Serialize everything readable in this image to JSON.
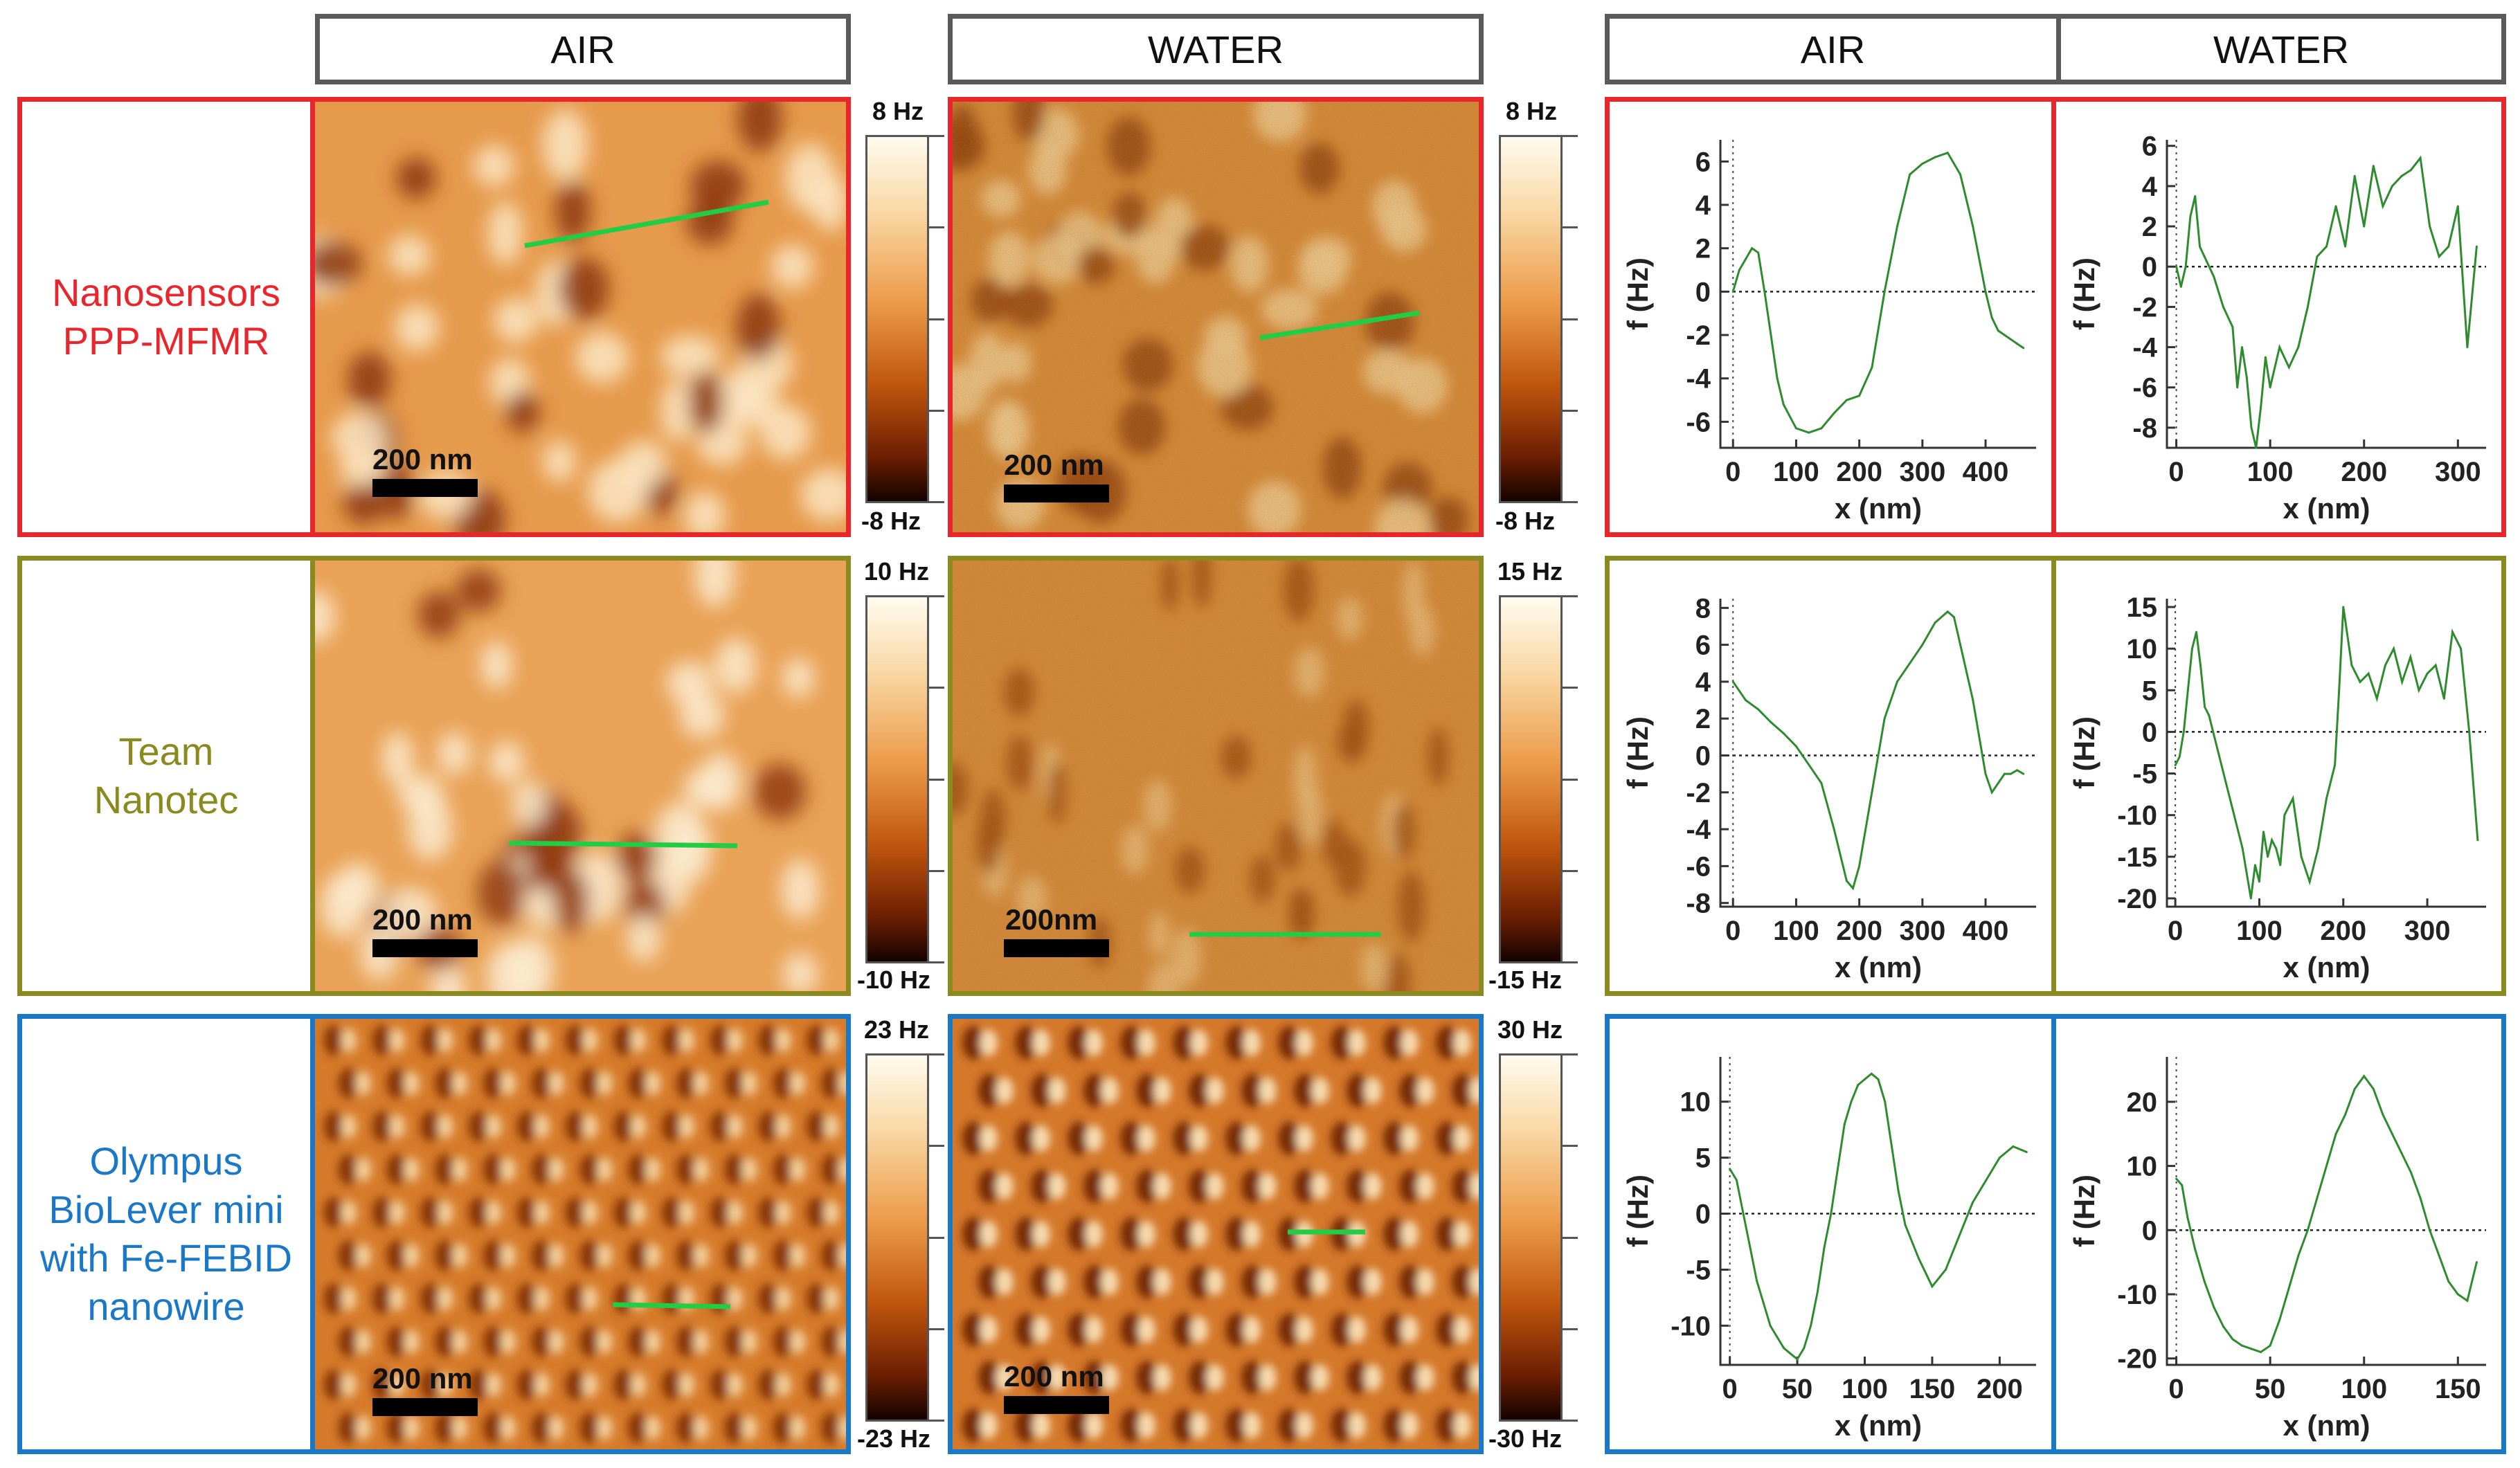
{
  "headers": {
    "afm_air": "AIR",
    "afm_water": "WATER",
    "plot_air": "AIR",
    "plot_water": "WATER"
  },
  "colors": {
    "row_red": "#e8262b",
    "row_olive": "#8a8a1e",
    "row_blue": "#1a78c8",
    "profile_line": "#2e8b2e",
    "scan_line": "#22cc44"
  },
  "rows": [
    {
      "label": "Nanosensors\nPPP-MFMR",
      "air_map": {
        "scale_label": "200 nm",
        "cbar_max": "8 Hz",
        "cbar_min": "-8 Hz"
      },
      "water_map": {
        "scale_label": "200 nm",
        "cbar_max": "8 Hz",
        "cbar_min": "-8 Hz"
      }
    },
    {
      "label": "Team\nNanotec",
      "air_map": {
        "scale_label": "200 nm",
        "cbar_max": "10 Hz",
        "cbar_min": "-10 Hz"
      },
      "water_map": {
        "scale_label": "200nm",
        "cbar_max": "15 Hz",
        "cbar_min": "-15 Hz"
      }
    },
    {
      "label": "Olympus\nBioLever mini\nwith Fe-FEBID\nnanowire",
      "air_map": {
        "scale_label": "200 nm",
        "cbar_max": "23 Hz",
        "cbar_min": "-23 Hz"
      },
      "water_map": {
        "scale_label": "200 nm",
        "cbar_max": "30 Hz",
        "cbar_min": "-30 Hz"
      }
    }
  ],
  "chart_data": [
    {
      "id": "r1_air",
      "type": "line",
      "xlabel": "x (nm)",
      "ylabel": "f (Hz)",
      "xlim": [
        -20,
        480
      ],
      "ylim": [
        -7.2,
        7
      ],
      "xticks": [
        0,
        100,
        200,
        300,
        400
      ],
      "yticks": [
        6,
        4,
        2,
        0,
        -2,
        -4,
        -6
      ],
      "x": [
        0,
        10,
        20,
        30,
        40,
        50,
        60,
        70,
        80,
        100,
        120,
        140,
        160,
        180,
        200,
        220,
        240,
        260,
        280,
        300,
        320,
        340,
        360,
        380,
        400,
        410,
        420,
        430,
        440,
        450,
        460
      ],
      "y": [
        0,
        1,
        1.5,
        2,
        1.8,
        0,
        -2,
        -4,
        -5.2,
        -6.3,
        -6.5,
        -6.3,
        -5.6,
        -5,
        -4.8,
        -3.5,
        0,
        3,
        5.4,
        5.9,
        6.2,
        6.4,
        5.4,
        3,
        0,
        -1.2,
        -1.8,
        -2,
        -2.2,
        -2.4,
        -2.6
      ]
    },
    {
      "id": "r1_water",
      "type": "line",
      "xlabel": "x (nm)",
      "ylabel": "f (Hz)",
      "xlim": [
        -10,
        330
      ],
      "ylim": [
        -9,
        6.3
      ],
      "xticks": [
        0,
        100,
        200,
        300
      ],
      "yticks": [
        6,
        4,
        2,
        0,
        -2,
        -4,
        -6,
        -8
      ],
      "x": [
        0,
        5,
        10,
        15,
        20,
        25,
        30,
        40,
        50,
        60,
        65,
        70,
        75,
        80,
        85,
        90,
        95,
        100,
        110,
        120,
        130,
        140,
        150,
        160,
        170,
        180,
        190,
        200,
        210,
        220,
        230,
        240,
        250,
        260,
        270,
        280,
        290,
        300,
        310,
        320
      ],
      "y": [
        0,
        -1,
        0,
        2.5,
        3.5,
        1,
        0.5,
        -0.5,
        -2,
        -3,
        -6,
        -4,
        -5.5,
        -8,
        -9,
        -7,
        -4.5,
        -6,
        -4,
        -5,
        -4,
        -2,
        0.5,
        1,
        3,
        1,
        4.5,
        2,
        5,
        3,
        4,
        4.5,
        4.8,
        5.4,
        2,
        0.5,
        1,
        3,
        -4,
        1
      ]
    },
    {
      "id": "r2_air",
      "type": "line",
      "xlabel": "x (nm)",
      "ylabel": "f (Hz)",
      "xlim": [
        -20,
        480
      ],
      "ylim": [
        -8.2,
        8.5
      ],
      "xticks": [
        0,
        100,
        200,
        300,
        400
      ],
      "yticks": [
        8,
        6,
        4,
        2,
        0,
        -2,
        -4,
        -6,
        -8
      ],
      "x": [
        0,
        20,
        40,
        60,
        80,
        100,
        120,
        140,
        160,
        180,
        190,
        200,
        220,
        240,
        260,
        280,
        300,
        320,
        340,
        350,
        360,
        380,
        400,
        410,
        420,
        430,
        440,
        450,
        460
      ],
      "y": [
        4,
        3,
        2.5,
        1.8,
        1.2,
        0.5,
        -0.5,
        -1.5,
        -4,
        -6.8,
        -7.2,
        -6,
        -2,
        2,
        4,
        5,
        6,
        7.2,
        7.8,
        7.5,
        6,
        3,
        -1,
        -2,
        -1.5,
        -1,
        -1,
        -0.8,
        -1
      ]
    },
    {
      "id": "r2_water",
      "type": "line",
      "xlabel": "x (nm)",
      "ylabel": "f (Hz)",
      "xlim": [
        -10,
        370
      ],
      "ylim": [
        -21,
        16
      ],
      "xticks": [
        0,
        100,
        200,
        300
      ],
      "yticks": [
        15,
        10,
        5,
        0,
        -5,
        -10,
        -15,
        -20
      ],
      "x": [
        0,
        5,
        10,
        15,
        20,
        25,
        30,
        35,
        40,
        50,
        60,
        70,
        80,
        90,
        95,
        100,
        105,
        110,
        115,
        120,
        125,
        130,
        140,
        150,
        160,
        170,
        180,
        190,
        195,
        200,
        210,
        220,
        230,
        240,
        250,
        260,
        270,
        280,
        290,
        300,
        310,
        320,
        330,
        340,
        350,
        360
      ],
      "y": [
        -4,
        -3,
        0,
        5,
        10,
        12,
        8,
        3,
        2,
        -2,
        -6,
        -10,
        -14,
        -20,
        -16,
        -18,
        -12,
        -15,
        -13,
        -14,
        -16,
        -10,
        -8,
        -15,
        -18,
        -14,
        -8,
        -4,
        5,
        15,
        8,
        6,
        7,
        4,
        8,
        10,
        6,
        9,
        5,
        7,
        8,
        4,
        12,
        10,
        0,
        -13
      ]
    },
    {
      "id": "r3_air",
      "type": "line",
      "xlabel": "x (nm)",
      "ylabel": "f (Hz)",
      "xlim": [
        -7,
        227
      ],
      "ylim": [
        -13.5,
        14
      ],
      "xticks": [
        0,
        50,
        100,
        150,
        200
      ],
      "yticks": [
        10,
        5,
        0,
        -5,
        -10
      ],
      "x": [
        0,
        5,
        10,
        15,
        20,
        25,
        30,
        35,
        40,
        45,
        50,
        55,
        60,
        65,
        70,
        75,
        80,
        85,
        90,
        95,
        100,
        105,
        110,
        115,
        120,
        125,
        130,
        140,
        150,
        160,
        170,
        180,
        190,
        200,
        210,
        220
      ],
      "y": [
        4,
        3,
        0,
        -3,
        -6,
        -8,
        -10,
        -11,
        -12,
        -12.5,
        -13,
        -12,
        -10,
        -7,
        -3,
        0,
        4,
        8,
        10,
        11.5,
        12,
        12.5,
        12,
        10,
        6,
        2,
        -1,
        -4,
        -6.5,
        -5,
        -2,
        1,
        3,
        5,
        6,
        5.5
      ]
    },
    {
      "id": "r3_water",
      "type": "line",
      "xlabel": "x (nm)",
      "ylabel": "f (Hz)",
      "xlim": [
        -5,
        165
      ],
      "ylim": [
        -21,
        27
      ],
      "xticks": [
        0,
        50,
        100,
        150
      ],
      "yticks": [
        20,
        10,
        0,
        -10,
        -20
      ],
      "x": [
        0,
        3,
        6,
        10,
        15,
        20,
        25,
        30,
        35,
        40,
        45,
        50,
        55,
        60,
        65,
        70,
        75,
        80,
        85,
        90,
        95,
        100,
        105,
        110,
        115,
        120,
        125,
        130,
        135,
        140,
        145,
        150,
        155,
        160
      ],
      "y": [
        8,
        7,
        2,
        -3,
        -8,
        -12,
        -15,
        -17,
        -18,
        -18.5,
        -19,
        -18,
        -14,
        -9,
        -4,
        0,
        5,
        10,
        15,
        18,
        22,
        24,
        22,
        18,
        15,
        12,
        9,
        5,
        0,
        -4,
        -8,
        -10,
        -11,
        -5
      ]
    }
  ]
}
